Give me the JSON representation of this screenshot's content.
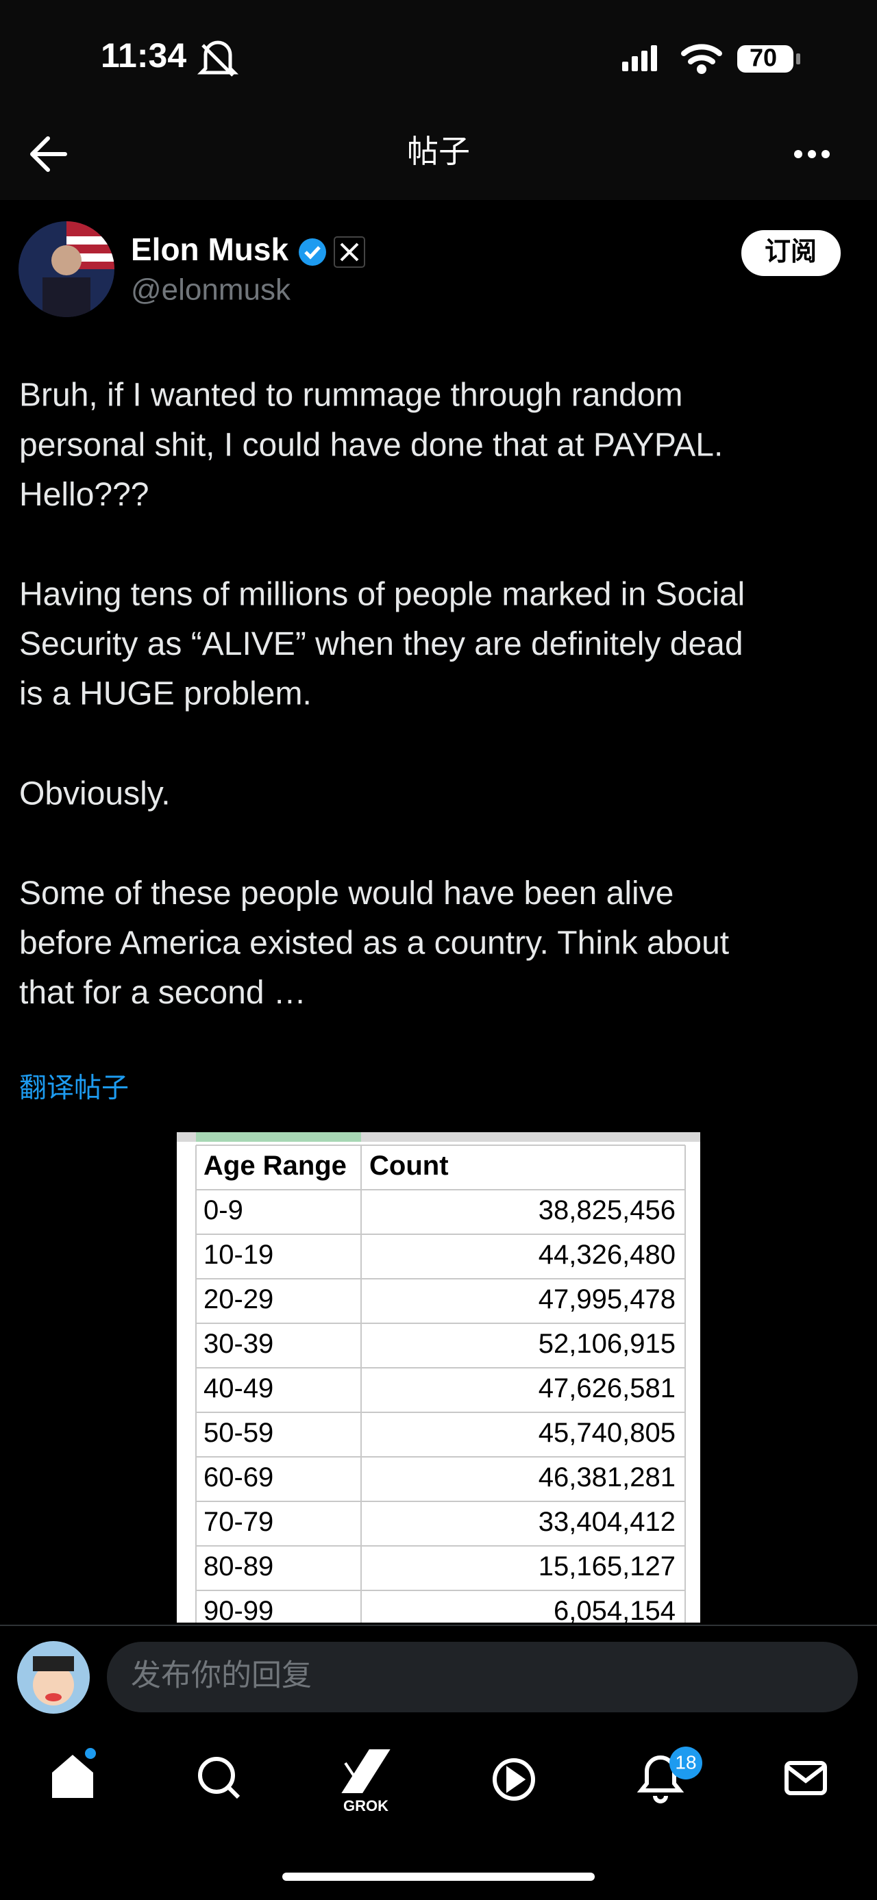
{
  "status_bar": {
    "time": "11:34",
    "battery": "70"
  },
  "header": {
    "title": "帖子"
  },
  "post": {
    "author": "Elon Musk",
    "handle": "@elonmusk",
    "subscribe": "订阅",
    "paragraphs": [
      [
        "Bruh, if I wanted to rummage through random",
        "personal shit, I could have done that at PAYPAL.",
        "Hello???"
      ],
      [
        "Having tens of millions of people marked in Social",
        "Security as “ALIVE” when they are definitely dead",
        "is a HUGE problem."
      ],
      [
        "Obviously."
      ],
      [
        "Some of these people would have been alive",
        "before America existed as a country. Think about",
        "that for a second …"
      ]
    ],
    "translate": "翻译帖子"
  },
  "table": {
    "header": [
      "Age Range",
      "Count"
    ],
    "rows": [
      [
        "0-9",
        "38,825,456"
      ],
      [
        "10-19",
        "44,326,480"
      ],
      [
        "20-29",
        "47,995,478"
      ],
      [
        "30-39",
        "52,106,915"
      ],
      [
        "40-49",
        "47,626,581"
      ],
      [
        "50-59",
        "45,740,805"
      ],
      [
        "60-69",
        "46,381,281"
      ],
      [
        "70-79",
        "33,404,412"
      ],
      [
        "80-89",
        "15,165,127"
      ],
      [
        "90-99",
        "6,054,154"
      ]
    ]
  },
  "reply": {
    "placeholder": "发布你的回复"
  },
  "nav": {
    "grok_label": "GROK",
    "notifications": "18"
  }
}
